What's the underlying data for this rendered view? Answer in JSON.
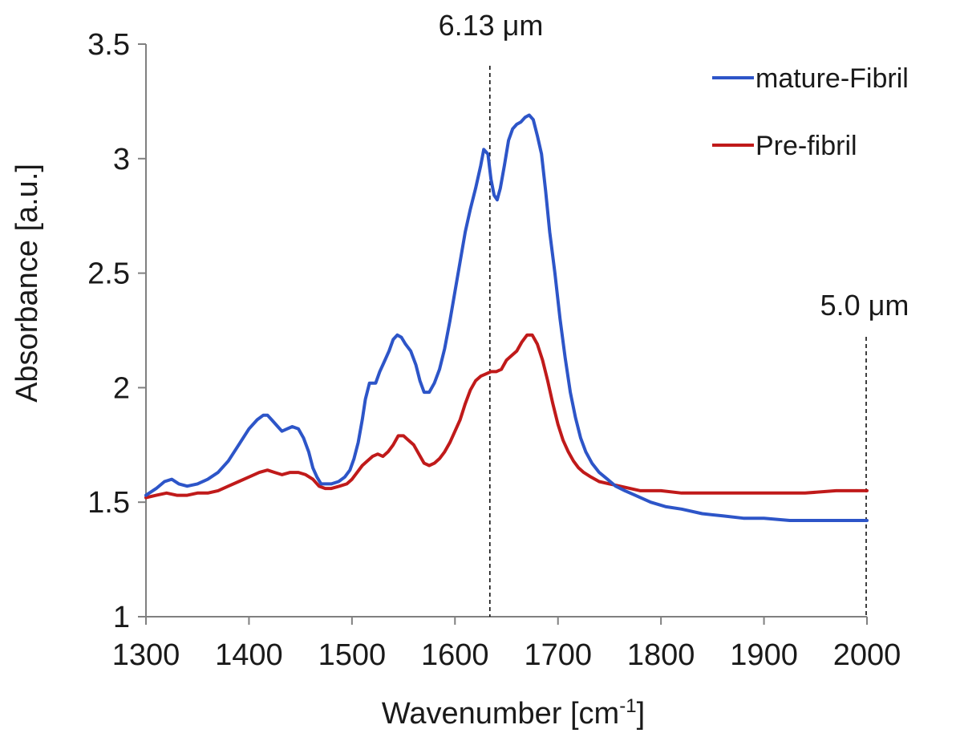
{
  "chart_data": {
    "type": "line",
    "title": "",
    "xlabel": "Wavenumber [cm",
    "xlabel_sup": "-1",
    "xlabel_end": "]",
    "ylabel": "Absorbance [a.u.]",
    "xlim": [
      1300,
      2000
    ],
    "ylim": [
      1,
      3.5
    ],
    "xticks": [
      1300,
      1400,
      1500,
      1600,
      1700,
      1800,
      1900,
      2000
    ],
    "yticks": [
      1,
      1.5,
      2,
      2.5,
      3,
      3.5
    ],
    "grid": false,
    "legend_position": "top-right",
    "annotations": [
      {
        "text": "6.13 μm",
        "x": 1630
      },
      {
        "text": "5.0 μm",
        "x": 2000
      }
    ],
    "series": [
      {
        "name": "mature-Fibril",
        "color": "#2d55c8",
        "x": [
          1300,
          1310,
          1318,
          1325,
          1332,
          1340,
          1350,
          1360,
          1370,
          1380,
          1390,
          1400,
          1408,
          1414,
          1418,
          1422,
          1428,
          1432,
          1437,
          1442,
          1448,
          1453,
          1458,
          1462,
          1466,
          1470,
          1474,
          1480,
          1487,
          1493,
          1498,
          1502,
          1506,
          1510,
          1513,
          1517,
          1520,
          1523,
          1527,
          1531,
          1536,
          1540,
          1544,
          1548,
          1552,
          1557,
          1562,
          1566,
          1570,
          1575,
          1580,
          1585,
          1590,
          1595,
          1600,
          1605,
          1610,
          1615,
          1620,
          1625,
          1628,
          1632,
          1635,
          1638,
          1641,
          1644,
          1648,
          1652,
          1656,
          1660,
          1664,
          1668,
          1672,
          1676,
          1680,
          1684,
          1688,
          1692,
          1697,
          1702,
          1707,
          1712,
          1717,
          1722,
          1727,
          1733,
          1740,
          1748,
          1756,
          1765,
          1775,
          1790,
          1805,
          1820,
          1840,
          1860,
          1880,
          1900,
          1925,
          1950,
          1975,
          2000
        ],
        "y": [
          1.53,
          1.56,
          1.59,
          1.6,
          1.58,
          1.57,
          1.58,
          1.6,
          1.63,
          1.68,
          1.75,
          1.82,
          1.86,
          1.88,
          1.88,
          1.86,
          1.83,
          1.81,
          1.82,
          1.83,
          1.82,
          1.78,
          1.72,
          1.65,
          1.61,
          1.58,
          1.58,
          1.58,
          1.59,
          1.61,
          1.64,
          1.69,
          1.76,
          1.86,
          1.95,
          2.02,
          2.02,
          2.02,
          2.07,
          2.11,
          2.16,
          2.21,
          2.23,
          2.22,
          2.19,
          2.16,
          2.1,
          2.03,
          1.98,
          1.98,
          2.02,
          2.08,
          2.17,
          2.29,
          2.42,
          2.55,
          2.68,
          2.78,
          2.87,
          2.97,
          3.04,
          3.02,
          2.91,
          2.84,
          2.82,
          2.87,
          2.97,
          3.08,
          3.13,
          3.15,
          3.16,
          3.18,
          3.19,
          3.17,
          3.1,
          3.02,
          2.86,
          2.68,
          2.5,
          2.3,
          2.13,
          1.98,
          1.87,
          1.78,
          1.72,
          1.67,
          1.63,
          1.6,
          1.57,
          1.55,
          1.53,
          1.5,
          1.48,
          1.47,
          1.45,
          1.44,
          1.43,
          1.43,
          1.42,
          1.42,
          1.42,
          1.42
        ]
      },
      {
        "name": "Pre-fibril",
        "color": "#c01a1a",
        "x": [
          1300,
          1310,
          1320,
          1330,
          1340,
          1350,
          1360,
          1370,
          1380,
          1390,
          1400,
          1410,
          1418,
          1425,
          1432,
          1440,
          1448,
          1455,
          1462,
          1468,
          1474,
          1480,
          1488,
          1495,
          1500,
          1505,
          1510,
          1515,
          1520,
          1525,
          1530,
          1535,
          1540,
          1545,
          1550,
          1555,
          1560,
          1565,
          1570,
          1575,
          1580,
          1585,
          1590,
          1595,
          1600,
          1605,
          1610,
          1615,
          1620,
          1625,
          1630,
          1635,
          1640,
          1645,
          1650,
          1655,
          1660,
          1665,
          1670,
          1675,
          1680,
          1685,
          1690,
          1695,
          1700,
          1705,
          1710,
          1715,
          1720,
          1725,
          1732,
          1740,
          1750,
          1760,
          1770,
          1780,
          1800,
          1820,
          1850,
          1880,
          1910,
          1940,
          1970,
          2000
        ],
        "y": [
          1.52,
          1.53,
          1.54,
          1.53,
          1.53,
          1.54,
          1.54,
          1.55,
          1.57,
          1.59,
          1.61,
          1.63,
          1.64,
          1.63,
          1.62,
          1.63,
          1.63,
          1.62,
          1.6,
          1.57,
          1.56,
          1.56,
          1.57,
          1.58,
          1.6,
          1.63,
          1.66,
          1.68,
          1.7,
          1.71,
          1.7,
          1.72,
          1.75,
          1.79,
          1.79,
          1.77,
          1.75,
          1.71,
          1.67,
          1.66,
          1.67,
          1.69,
          1.72,
          1.76,
          1.81,
          1.86,
          1.93,
          1.99,
          2.03,
          2.05,
          2.06,
          2.07,
          2.07,
          2.08,
          2.12,
          2.14,
          2.16,
          2.2,
          2.23,
          2.23,
          2.19,
          2.12,
          2.03,
          1.93,
          1.84,
          1.77,
          1.72,
          1.68,
          1.65,
          1.63,
          1.61,
          1.59,
          1.58,
          1.57,
          1.56,
          1.55,
          1.55,
          1.54,
          1.54,
          1.54,
          1.54,
          1.54,
          1.55,
          1.55
        ]
      }
    ]
  }
}
